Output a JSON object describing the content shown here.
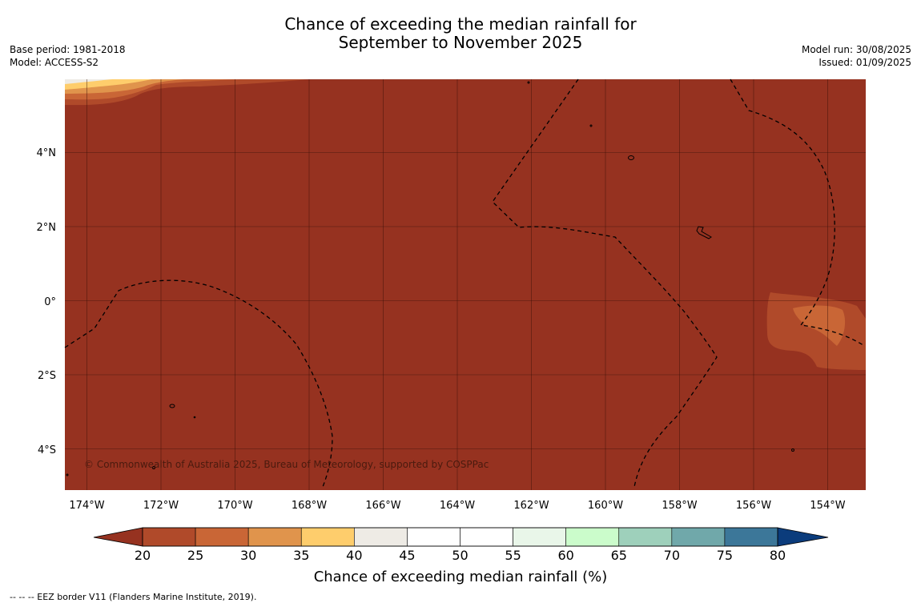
{
  "title_line1": "Chance of exceeding the median rainfall for",
  "title_line2": "September to November 2025",
  "meta_left": [
    "Base period: 1981-2018",
    "Model: ACCESS-S2"
  ],
  "meta_right": [
    "Model run: 30/08/2025",
    "Issued: 01/09/2025"
  ],
  "copyright": "© Commonwealth of Australia 2025, Bureau of Meteorology, supported by COSPPac",
  "footnote": "--  --  -- EEZ border V11 (Flanders Marine Institute, 2019).",
  "map": {
    "background_color": "#963220",
    "x_ticks": [
      "174°W",
      "172°W",
      "170°W",
      "168°W",
      "166°W",
      "164°W",
      "162°W",
      "160°W",
      "158°W",
      "156°W",
      "154°W"
    ],
    "y_ticks": [
      "4°N",
      "2°N",
      "0°",
      "2°S",
      "4°S"
    ]
  },
  "colorbar": {
    "title": "Chance of exceeding median rainfall (%)",
    "ticks": [
      "20",
      "25",
      "30",
      "35",
      "40",
      "45",
      "50",
      "55",
      "60",
      "65",
      "70",
      "75",
      "80"
    ],
    "low_extend_color": "#963220",
    "high_extend_color": "#0b3c7c",
    "colors": [
      "#b04a2a",
      "#c96636",
      "#e0944c",
      "#fecd6c",
      "#eeebe5",
      "#ffffff",
      "#ffffff",
      "#e9f6e9",
      "#cbfccb",
      "#9ed0bb",
      "#70a8aa",
      "#3c7799"
    ]
  }
}
